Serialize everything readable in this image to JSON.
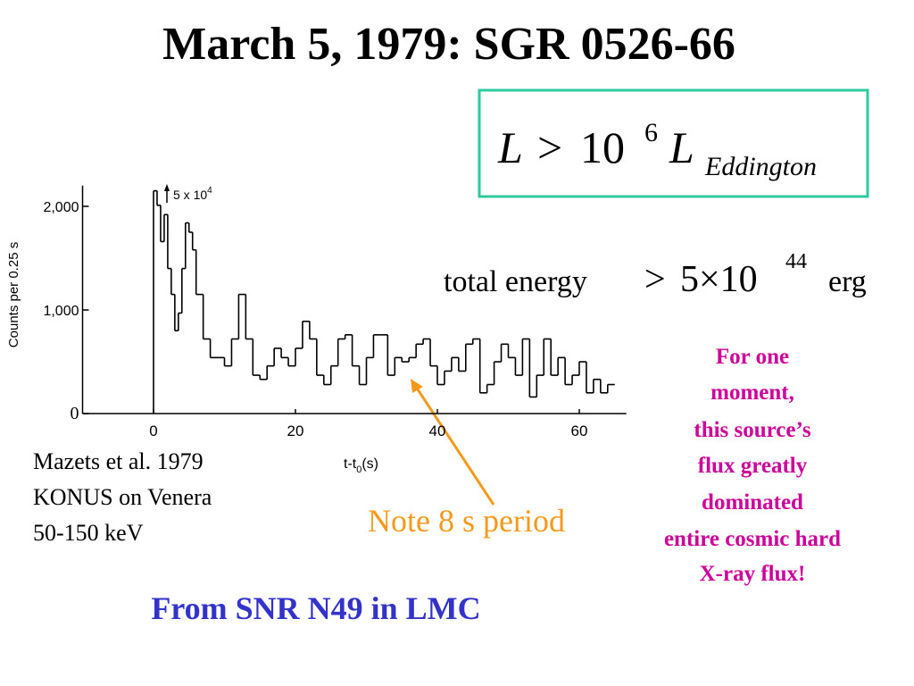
{
  "title": "March 5, 1979: SGR 0526-66",
  "luminosity": {
    "parts": [
      "L",
      ">",
      "10",
      "6",
      "L",
      "Eddington"
    ]
  },
  "energy": {
    "parts": [
      "total energy",
      ">",
      "5×10",
      "44",
      "erg"
    ]
  },
  "citation": [
    "Mazets et al. 1979",
    "KONUS on Venera",
    "50-150 keV"
  ],
  "note": "Note 8 s period",
  "remark": [
    "For one",
    "moment,",
    "this source’s",
    "flux greatly",
    "dominated",
    "entire cosmic hard",
    "X-ray flux!"
  ],
  "origin": "From SNR N49 in LMC",
  "chart_data": {
    "type": "line",
    "step": true,
    "y_label": "Counts per 0.25 s",
    "x_label": [
      "t-t",
      "0",
      "(s)"
    ],
    "annotation": [
      "5 x 10",
      "4"
    ],
    "x": [
      0,
      0.5,
      1,
      1.5,
      2,
      2.5,
      3,
      3.5,
      4,
      4.5,
      5,
      5.5,
      6,
      7,
      8,
      9,
      10,
      11,
      12,
      13,
      14,
      15,
      16,
      17,
      18,
      19,
      20,
      21,
      22,
      23,
      24,
      25,
      26,
      27,
      28,
      29,
      30,
      31,
      32,
      33,
      34,
      35,
      36,
      37,
      38,
      39,
      40,
      41,
      42,
      43,
      44,
      45,
      46,
      47,
      48,
      49,
      50,
      51,
      52,
      53,
      54,
      55,
      56,
      57,
      58,
      59,
      60,
      61,
      62,
      63,
      64
    ],
    "series": [
      {
        "color": "#000000",
        "values": [
          2150,
          2010,
          1660,
          1920,
          1400,
          1150,
          800,
          970,
          1400,
          1840,
          1750,
          1580,
          1150,
          720,
          540,
          540,
          460,
          720,
          1150,
          720,
          370,
          330,
          460,
          630,
          540,
          460,
          630,
          890,
          720,
          370,
          280,
          460,
          720,
          760,
          460,
          280,
          540,
          760,
          760,
          370,
          540,
          500,
          540,
          670,
          720,
          460,
          280,
          410,
          540,
          410,
          670,
          720,
          200,
          280,
          500,
          670,
          540,
          370,
          720,
          160,
          370,
          720,
          370,
          540,
          280,
          370,
          500,
          200,
          330,
          200,
          280
        ]
      }
    ],
    "xlim": [
      -10,
      66
    ],
    "ylim": [
      0,
      2200
    ],
    "xticks": [
      0,
      20,
      40,
      60
    ],
    "yticks": [
      0,
      {
        "value": 1000,
        "label": "1,000"
      },
      {
        "value": 2000,
        "label": "2,000"
      }
    ]
  }
}
